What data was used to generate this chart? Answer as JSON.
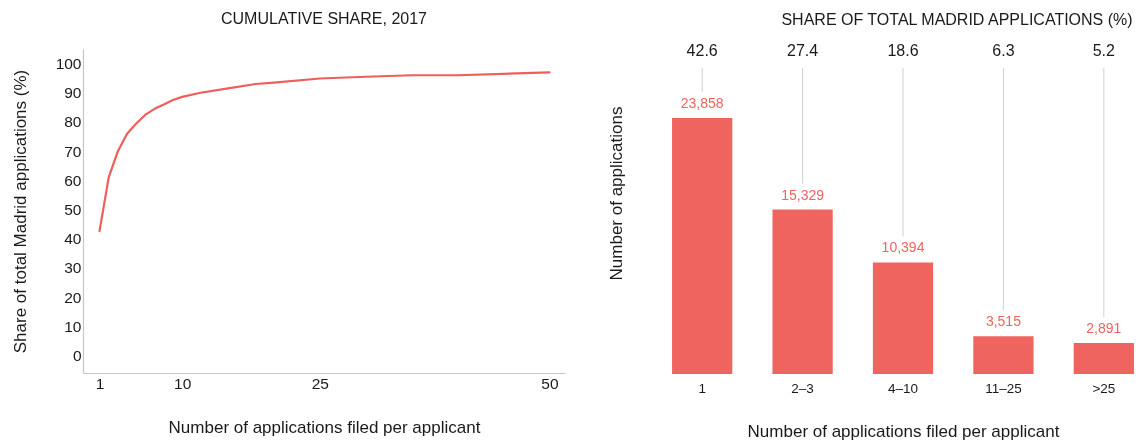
{
  "chart_data": [
    {
      "type": "line",
      "title": "CUMULATIVE SHARE, 2017",
      "xlabel": "Number of applications filed per applicant",
      "ylabel": "Share of total Madrid applications (%)",
      "color": "#ef5f5a",
      "x": [
        1,
        2,
        3,
        4,
        5,
        6,
        7,
        8,
        9,
        10,
        12,
        15,
        18,
        20,
        25,
        30,
        35,
        40,
        45,
        50
      ],
      "values": [
        42.6,
        61,
        70,
        76,
        79.5,
        82.5,
        84.5,
        86,
        87.5,
        88.6,
        90,
        91.5,
        93,
        93.5,
        94.9,
        95.5,
        96,
        96,
        96.5,
        97
      ],
      "xlim": [
        -0.8,
        51.7
      ],
      "xticks": [
        1,
        10,
        25,
        50
      ],
      "ylim": [
        -6,
        105
      ],
      "yticks": [
        0,
        10,
        20,
        30,
        40,
        50,
        60,
        70,
        80,
        90,
        100
      ]
    },
    {
      "type": "bar",
      "title": "SHARE OF TOTAL MADRID APPLICATIONS (%)",
      "xlabel": "Number of applications filed per applicant",
      "ylabel": "Number of applications",
      "categories": [
        "1",
        "2–3",
        "4–10",
        "11–25",
        ">25"
      ],
      "values": [
        23858,
        15329,
        10394,
        3515,
        2891
      ],
      "value_labels": [
        "23,858",
        "15,329",
        "10,394",
        "3,515",
        "2,891"
      ],
      "color": "#ef645e",
      "tick_labels": "x",
      "annotations": [
        "42.6",
        "27.4",
        "18.6",
        "6.3",
        "5.2"
      ]
    }
  ]
}
